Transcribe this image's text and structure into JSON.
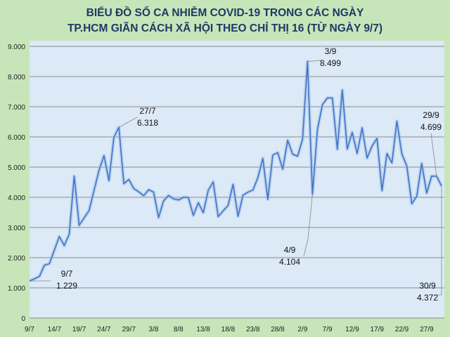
{
  "chart_data": {
    "type": "line",
    "title": [
      "BIỂU ĐỒ SỐ CA NHIỄM COVID-19 TRONG CÁC NGÀY",
      "TP.HCM GIÃN CÁCH XÃ HỘI THEO CHỈ THỊ 16 (TỪ NGÀY 9/7)"
    ],
    "xlabel": "",
    "ylabel": "",
    "ylim": [
      0,
      9000
    ],
    "yticks": [
      "0",
      "1.000",
      "2.000",
      "3.000",
      "4.000",
      "5.000",
      "6.000",
      "7.000",
      "8.000",
      "9.000"
    ],
    "xtick_labels": [
      "9/7",
      "14/7",
      "19/7",
      "24/7",
      "29/7",
      "3/8",
      "8/8",
      "13/8",
      "18/8",
      "23/8",
      "28/8",
      "2/9",
      "7/9",
      "12/9",
      "17/9",
      "22/9",
      "27/9"
    ],
    "x_start": "9/7",
    "x_end": "30/9",
    "grid": true,
    "line_color": "#4472c4",
    "values": [
      1229,
      1300,
      1380,
      1750,
      1800,
      2250,
      2700,
      2400,
      2780,
      4700,
      3070,
      3320,
      3560,
      4230,
      4890,
      5380,
      4550,
      5990,
      6318,
      4450,
      4590,
      4290,
      4180,
      4050,
      4250,
      4170,
      3330,
      3880,
      4060,
      3950,
      3910,
      4000,
      3990,
      3400,
      3820,
      3490,
      4230,
      4510,
      3360,
      3550,
      3730,
      4430,
      3370,
      4070,
      4170,
      4240,
      4650,
      5290,
      3930,
      5400,
      5480,
      4930,
      5890,
      5430,
      5360,
      5920,
      8499,
      4104,
      6250,
      7070,
      7290,
      7290,
      5590,
      7550,
      5600,
      6150,
      5450,
      6300,
      5300,
      5700,
      5950,
      4220,
      5450,
      5140,
      6520,
      5440,
      5030,
      3790,
      4030,
      5120,
      4140,
      4700,
      4699,
      4372
    ],
    "annotations": [
      {
        "date": "9/7",
        "value": "1.229",
        "index": 0
      },
      {
        "date": "27/7",
        "value": "6.318",
        "index": 18
      },
      {
        "date": "3/9",
        "value": "8.499",
        "index": 56
      },
      {
        "date": "4/9",
        "value": "4.104",
        "index": 57
      },
      {
        "date": "29/9",
        "value": "4.699",
        "index": 82
      },
      {
        "date": "30/9",
        "value": "4.372",
        "index": 83
      }
    ]
  }
}
